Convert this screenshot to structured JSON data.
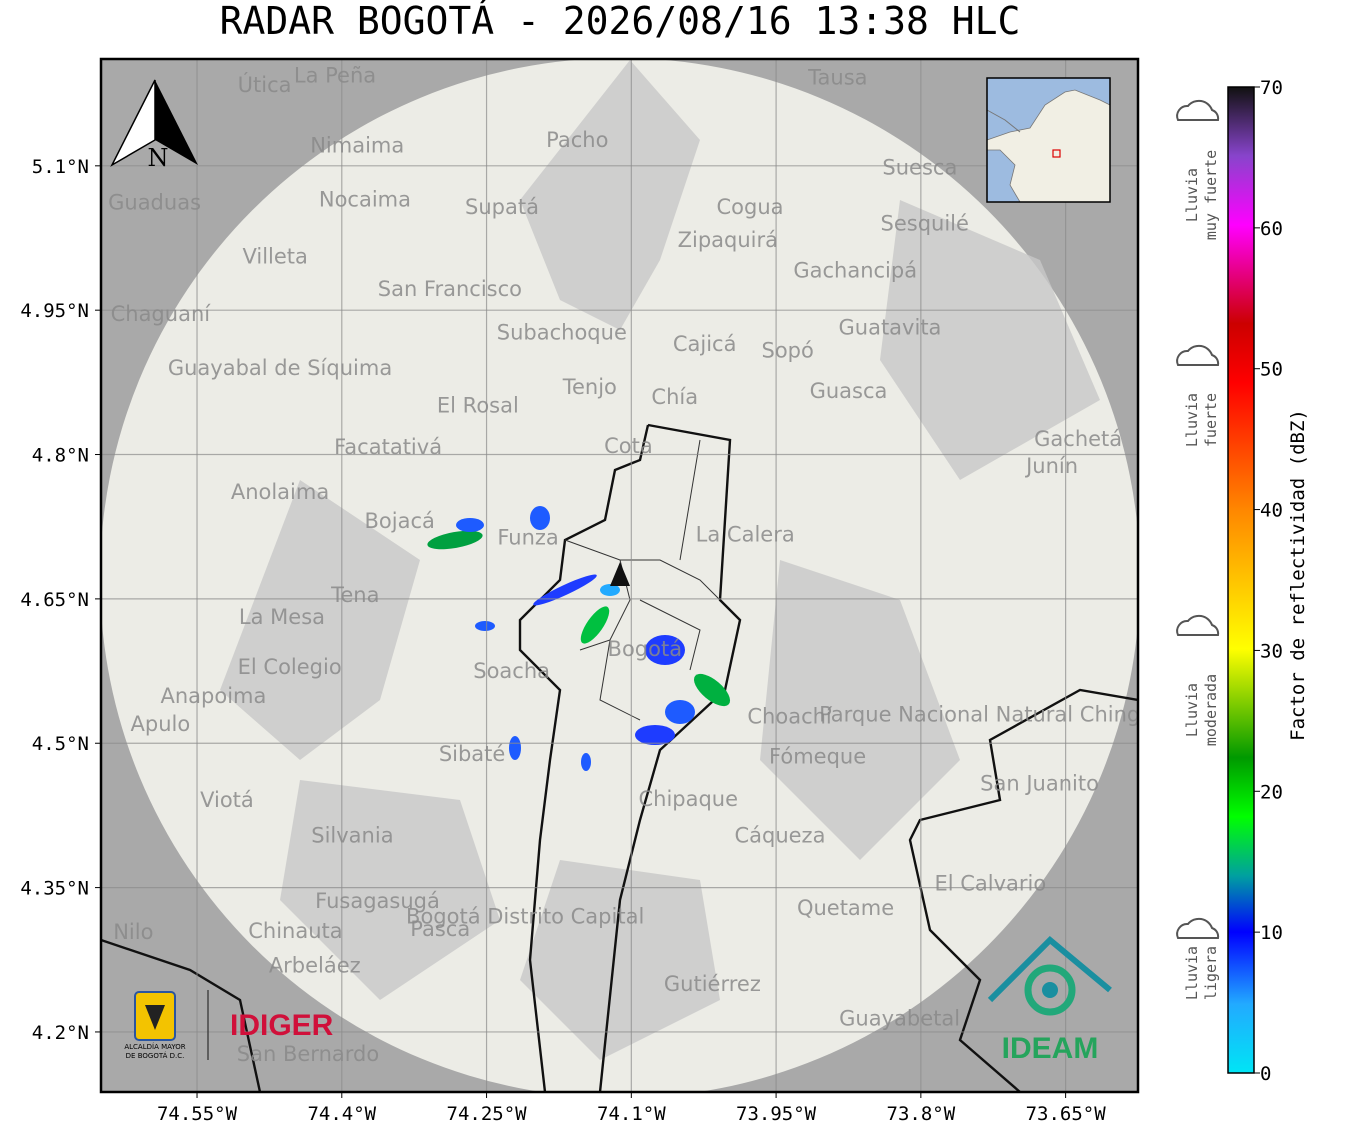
{
  "title": "RADAR BOGOTÁ - 2026/08/16 13:38 HLC",
  "north": "N",
  "map": {
    "xlim": [
      -74.6495,
      -73.575
    ],
    "ylim": [
      4.1376,
      5.211
    ],
    "xticks": [
      {
        "value": -74.55,
        "label": "74.55°W"
      },
      {
        "value": -74.4,
        "label": "74.4°W"
      },
      {
        "value": -74.25,
        "label": "74.25°W"
      },
      {
        "value": -74.1,
        "label": "74.1°W"
      },
      {
        "value": -73.95,
        "label": "73.95°W"
      },
      {
        "value": -73.8,
        "label": "73.8°W"
      },
      {
        "value": -73.65,
        "label": "73.65°W"
      }
    ],
    "yticks": [
      {
        "value": 4.2,
        "label": "4.2°N"
      },
      {
        "value": 4.35,
        "label": "4.35°N"
      },
      {
        "value": 4.5,
        "label": "4.5°N"
      },
      {
        "value": 4.65,
        "label": "4.65°N"
      },
      {
        "value": 4.8,
        "label": "4.8°N"
      },
      {
        "value": 4.95,
        "label": "4.95°N"
      },
      {
        "value": 5.1,
        "label": "5.1°N"
      }
    ],
    "grid": true,
    "places": [
      {
        "name": "La Peña",
        "lon": -74.407,
        "lat": 5.194
      },
      {
        "name": "Útica",
        "lon": -74.48,
        "lat": 5.184
      },
      {
        "name": "Tausa",
        "lon": -73.886,
        "lat": 5.192
      },
      {
        "name": "Pacho",
        "lon": -74.156,
        "lat": 5.127
      },
      {
        "name": "Nimaima",
        "lon": -74.384,
        "lat": 5.121
      },
      {
        "name": "Nocaima",
        "lon": -74.376,
        "lat": 5.065
      },
      {
        "name": "Supatá",
        "lon": -74.234,
        "lat": 5.057
      },
      {
        "name": "Guaduas",
        "lon": -74.594,
        "lat": 5.062
      },
      {
        "name": "Suesca",
        "lon": -73.801,
        "lat": 5.098
      },
      {
        "name": "Cogua",
        "lon": -73.977,
        "lat": 5.057
      },
      {
        "name": "Sesquilé",
        "lon": -73.796,
        "lat": 5.04
      },
      {
        "name": "Zipaquirá",
        "lon": -74.0,
        "lat": 5.023
      },
      {
        "name": "Villeta",
        "lon": -74.469,
        "lat": 5.006
      },
      {
        "name": "Gachancipá",
        "lon": -73.868,
        "lat": 4.991
      },
      {
        "name": "San Francisco",
        "lon": -74.288,
        "lat": 4.972
      },
      {
        "name": "Chaguaní",
        "lon": -74.588,
        "lat": 4.946
      },
      {
        "name": "Guatavita",
        "lon": -73.832,
        "lat": 4.932
      },
      {
        "name": "Subachoque",
        "lon": -74.172,
        "lat": 4.927
      },
      {
        "name": "Cajicá",
        "lon": -74.024,
        "lat": 4.915
      },
      {
        "name": "Sopó",
        "lon": -73.938,
        "lat": 4.908
      },
      {
        "name": "Guayabal de Síquima",
        "lon": -74.464,
        "lat": 4.89
      },
      {
        "name": "Tenjo",
        "lon": -74.143,
        "lat": 4.87
      },
      {
        "name": "Guasca",
        "lon": -73.875,
        "lat": 4.866
      },
      {
        "name": "El Rosal",
        "lon": -74.259,
        "lat": 4.851
      },
      {
        "name": "Chía",
        "lon": -74.055,
        "lat": 4.86
      },
      {
        "name": "Facatativá",
        "lon": -74.352,
        "lat": 4.808
      },
      {
        "name": "Cota",
        "lon": -74.103,
        "lat": 4.809
      },
      {
        "name": "Gachetá",
        "lon": -73.637,
        "lat": 4.816
      },
      {
        "name": "Junín",
        "lon": -73.664,
        "lat": 4.788
      },
      {
        "name": "Anolaima",
        "lon": -74.464,
        "lat": 4.761
      },
      {
        "name": "Bojacá",
        "lon": -74.34,
        "lat": 4.731
      },
      {
        "name": "Funza",
        "lon": -74.207,
        "lat": 4.714
      },
      {
        "name": "La Calera",
        "lon": -73.982,
        "lat": 4.717
      },
      {
        "name": "Tena",
        "lon": -74.386,
        "lat": 4.654
      },
      {
        "name": "La Mesa",
        "lon": -74.462,
        "lat": 4.631
      },
      {
        "name": "Bogotá",
        "lon": -74.086,
        "lat": 4.598
      },
      {
        "name": "El Colegio",
        "lon": -74.454,
        "lat": 4.579
      },
      {
        "name": "Soacha",
        "lon": -74.224,
        "lat": 4.575
      },
      {
        "name": "Anapoima",
        "lon": -74.533,
        "lat": 4.549
      },
      {
        "name": "Apulo",
        "lon": -74.588,
        "lat": 4.52
      },
      {
        "name": "Choachí",
        "lon": -73.936,
        "lat": 4.528
      },
      {
        "name": "Sibaté",
        "lon": -74.265,
        "lat": 4.489
      },
      {
        "name": "Fómeque",
        "lon": -73.907,
        "lat": 4.486
      },
      {
        "name": "San Juanito",
        "lon": -73.677,
        "lat": 4.458
      },
      {
        "name": "Parque Nacional Natural Chingaza",
        "lon": -73.72,
        "lat": 4.53
      },
      {
        "name": "Viotá",
        "lon": -74.519,
        "lat": 4.441
      },
      {
        "name": "Chipaque",
        "lon": -74.041,
        "lat": 4.442
      },
      {
        "name": "Silvania",
        "lon": -74.389,
        "lat": 4.404
      },
      {
        "name": "Cáqueza",
        "lon": -73.946,
        "lat": 4.404
      },
      {
        "name": "El Calvario",
        "lon": -73.728,
        "lat": 4.354
      },
      {
        "name": "Fusagasugá",
        "lon": -74.363,
        "lat": 4.336
      },
      {
        "name": "Bogotá Distrito Capital",
        "lon": -74.21,
        "lat": 4.32
      },
      {
        "name": "Quetame",
        "lon": -73.878,
        "lat": 4.329
      },
      {
        "name": "Nilo",
        "lon": -74.616,
        "lat": 4.304
      },
      {
        "name": "Chinauta",
        "lon": -74.448,
        "lat": 4.305
      },
      {
        "name": "Pasca",
        "lon": -74.298,
        "lat": 4.307
      },
      {
        "name": "Arbeláez",
        "lon": -74.428,
        "lat": 4.269
      },
      {
        "name": "Gutiérrez",
        "lon": -74.016,
        "lat": 4.25
      },
      {
        "name": "Guayabetal",
        "lon": -73.822,
        "lat": 4.214
      },
      {
        "name": "San Bernardo",
        "lon": -74.435,
        "lat": 4.177
      }
    ]
  },
  "colorbar": {
    "label": "Factor de reflectividad (dBZ)",
    "lim": [
      0,
      70
    ],
    "ticks": [
      0,
      10,
      20,
      30,
      40,
      50,
      60,
      70
    ]
  },
  "intensity": [
    [
      "Lluvia",
      "ligera"
    ],
    [
      "Lluvia",
      "moderada"
    ],
    [
      "Lluvia",
      "fuerte"
    ],
    [
      "Lluvia",
      "muy fuerte"
    ]
  ],
  "logos": {
    "alcaldia": [
      "ALCALDÍA MAYOR",
      "DE BOGOTÁ D.C."
    ],
    "idiger": "IDIGER",
    "ideam": "IDEAM"
  }
}
